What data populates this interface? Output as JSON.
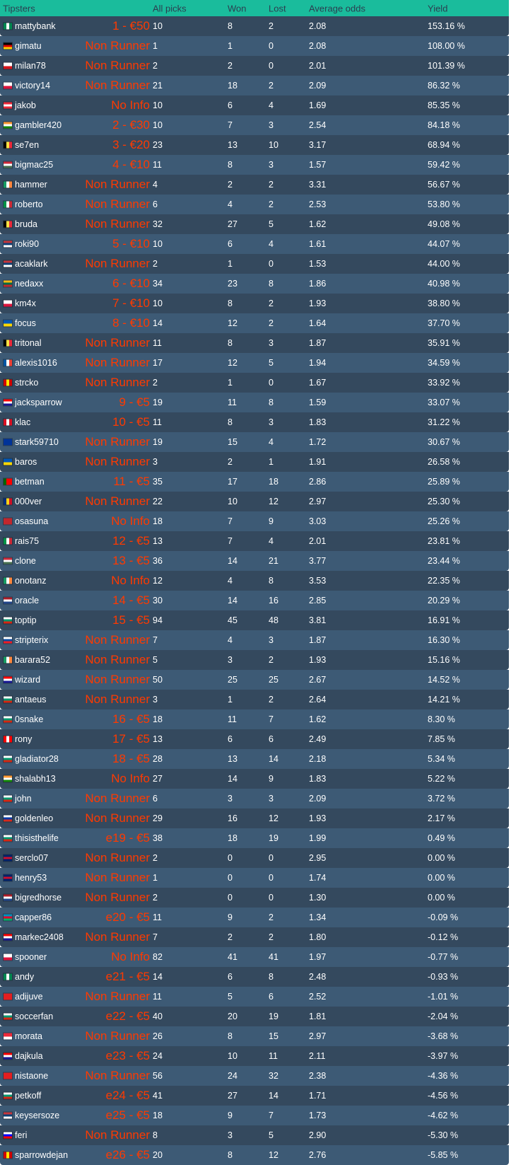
{
  "header": {
    "tipsters": "Tipsters",
    "all_picks": "All picks",
    "won": "Won",
    "lost": "Lost",
    "average_odds": "Average odds",
    "yield": "Yield"
  },
  "colors": {
    "header_bg": "#1abc9c",
    "row_dark": "#34495e",
    "row_light": "#3d5a75",
    "label": "#ff3a00"
  },
  "rows": [
    {
      "name": "mattybank",
      "label": "1 - €50",
      "picks": "10",
      "won": "8",
      "lost": "2",
      "odds": "2.08",
      "yield": "153.16 %",
      "flag": {
        "dir": "v",
        "colors": [
          "#008751",
          "#ffffff",
          "#008751"
        ]
      }
    },
    {
      "name": "gimatu",
      "label": "Non Runner",
      "picks": "1",
      "won": "1",
      "lost": "0",
      "odds": "2.08",
      "yield": "108.00 %",
      "flag": {
        "dir": "h",
        "colors": [
          "#000000",
          "#dd0000",
          "#ffce00"
        ]
      }
    },
    {
      "name": "milan78",
      "label": "Non Runner",
      "picks": "2",
      "won": "2",
      "lost": "0",
      "odds": "2.01",
      "yield": "101.39 %",
      "flag": {
        "dir": "h",
        "colors": [
          "#ffffff",
          "#d7141a"
        ]
      }
    },
    {
      "name": "victory14",
      "label": "Non Runner",
      "picks": "21",
      "won": "18",
      "lost": "2",
      "odds": "2.09",
      "yield": "86.32 %",
      "flag": {
        "dir": "h",
        "colors": [
          "#ffffff",
          "#dc143c"
        ]
      }
    },
    {
      "name": "jakob",
      "label": "No Info",
      "picks": "10",
      "won": "6",
      "lost": "4",
      "odds": "1.69",
      "yield": "85.35 %",
      "flag": {
        "dir": "h",
        "colors": [
          "#ed2939",
          "#ffffff",
          "#ed2939"
        ]
      }
    },
    {
      "name": "gambler420",
      "label": "2 - €30",
      "picks": "10",
      "won": "7",
      "lost": "3",
      "odds": "2.54",
      "yield": "84.18 %",
      "flag": {
        "dir": "h",
        "colors": [
          "#ff9933",
          "#ffffff",
          "#138808"
        ]
      }
    },
    {
      "name": "se7en",
      "label": "3 - €20",
      "picks": "23",
      "won": "13",
      "lost": "10",
      "odds": "3.17",
      "yield": "68.94 %",
      "flag": {
        "dir": "v",
        "colors": [
          "#000000",
          "#fae042",
          "#ed2939"
        ]
      }
    },
    {
      "name": "bigmac25",
      "label": "4 - €10",
      "picks": "11",
      "won": "8",
      "lost": "3",
      "odds": "1.57",
      "yield": "59.42 %",
      "flag": {
        "dir": "h",
        "colors": [
          "#ce2939",
          "#ffffff",
          "#477050"
        ]
      }
    },
    {
      "name": "hammer",
      "label": "Non Runner",
      "picks": "4",
      "won": "2",
      "lost": "2",
      "odds": "3.31",
      "yield": "56.67 %",
      "flag": {
        "dir": "v",
        "colors": [
          "#169b62",
          "#ffffff",
          "#ff883e"
        ]
      }
    },
    {
      "name": "roberto",
      "label": "Non Runner",
      "picks": "6",
      "won": "4",
      "lost": "2",
      "odds": "2.53",
      "yield": "53.80 %",
      "flag": {
        "dir": "v",
        "colors": [
          "#009246",
          "#ffffff",
          "#ce2b37"
        ]
      }
    },
    {
      "name": "bruda",
      "label": "Non Runner",
      "picks": "32",
      "won": "27",
      "lost": "5",
      "odds": "1.62",
      "yield": "49.08 %",
      "flag": {
        "dir": "v",
        "colors": [
          "#000000",
          "#fae042",
          "#ed2939"
        ]
      }
    },
    {
      "name": "roki90",
      "label": "5 - €10",
      "picks": "10",
      "won": "6",
      "lost": "4",
      "odds": "1.61",
      "yield": "44.07 %",
      "flag": {
        "dir": "h",
        "colors": [
          "#c6363c",
          "#0c4076",
          "#ffffff"
        ]
      }
    },
    {
      "name": "acaklark",
      "label": "Non Runner",
      "picks": "2",
      "won": "1",
      "lost": "0",
      "odds": "1.53",
      "yield": "44.00 %",
      "flag": {
        "dir": "h",
        "colors": [
          "#c6363c",
          "#0c4076",
          "#ffffff"
        ]
      }
    },
    {
      "name": "nedaxx",
      "label": "6 - €10",
      "picks": "34",
      "won": "23",
      "lost": "8",
      "odds": "1.86",
      "yield": "40.98 %",
      "flag": {
        "dir": "h",
        "colors": [
          "#fdb913",
          "#006a44",
          "#c1272d"
        ]
      }
    },
    {
      "name": "km4x",
      "label": "7 - €10",
      "picks": "10",
      "won": "8",
      "lost": "2",
      "odds": "1.93",
      "yield": "38.80 %",
      "flag": {
        "dir": "h",
        "colors": [
          "#ffffff",
          "#dc143c"
        ]
      }
    },
    {
      "name": "focus",
      "label": "8 - €10",
      "picks": "14",
      "won": "12",
      "lost": "2",
      "odds": "1.64",
      "yield": "37.70 %",
      "flag": {
        "dir": "h",
        "colors": [
          "#0057b7",
          "#ffd700"
        ]
      }
    },
    {
      "name": "tritonal",
      "label": "Non Runner",
      "picks": "11",
      "won": "8",
      "lost": "3",
      "odds": "1.87",
      "yield": "35.91 %",
      "flag": {
        "dir": "v",
        "colors": [
          "#000000",
          "#fae042",
          "#ed2939"
        ]
      }
    },
    {
      "name": "alexis1016",
      "label": "Non Runner",
      "picks": "17",
      "won": "12",
      "lost": "5",
      "odds": "1.94",
      "yield": "34.59 %",
      "flag": {
        "dir": "v",
        "colors": [
          "#0055a4",
          "#ffffff",
          "#ef4135"
        ]
      }
    },
    {
      "name": "strcko",
      "label": "Non Runner",
      "picks": "2",
      "won": "1",
      "lost": "0",
      "odds": "1.67",
      "yield": "33.92 %",
      "flag": {
        "dir": "v",
        "colors": [
          "#d20000",
          "#ffe600",
          "#d20000"
        ]
      }
    },
    {
      "name": "jacksparrow",
      "label": "9 - €5",
      "picks": "19",
      "won": "11",
      "lost": "8",
      "odds": "1.59",
      "yield": "33.07 %",
      "flag": {
        "dir": "h",
        "colors": [
          "#ff0000",
          "#ffffff",
          "#171796"
        ]
      }
    },
    {
      "name": "klac",
      "label": "10 - €5",
      "picks": "11",
      "won": "8",
      "lost": "3",
      "odds": "1.83",
      "yield": "31.22 %",
      "flag": {
        "dir": "v",
        "colors": [
          "#d91023",
          "#ffffff",
          "#d91023"
        ]
      }
    },
    {
      "name": "stark59710",
      "label": "Non Runner",
      "picks": "19",
      "won": "15",
      "lost": "4",
      "odds": "1.72",
      "yield": "30.67 %",
      "flag": {
        "dir": "h",
        "colors": [
          "#003399"
        ]
      }
    },
    {
      "name": "baros",
      "label": "Non Runner",
      "picks": "3",
      "won": "2",
      "lost": "1",
      "odds": "1.91",
      "yield": "26.58 %",
      "flag": {
        "dir": "h",
        "colors": [
          "#0057b7",
          "#ffd700"
        ]
      }
    },
    {
      "name": "betman",
      "label": "11 - €5",
      "picks": "35",
      "won": "17",
      "lost": "18",
      "odds": "2.86",
      "yield": "25.89 %",
      "flag": {
        "dir": "v",
        "colors": [
          "#006600",
          "#ff0000",
          "#ff0000"
        ]
      }
    },
    {
      "name": "000ver",
      "label": "Non Runner",
      "picks": "22",
      "won": "10",
      "lost": "12",
      "odds": "2.97",
      "yield": "25.30 %",
      "flag": {
        "dir": "v",
        "colors": [
          "#002b7f",
          "#fcd116",
          "#ce1126"
        ]
      }
    },
    {
      "name": "osasuna",
      "label": "No Info",
      "picks": "18",
      "won": "7",
      "lost": "9",
      "odds": "3.03",
      "yield": "25.26 %",
      "flag": {
        "dir": "h",
        "colors": [
          "#c1272d"
        ]
      }
    },
    {
      "name": "rais75",
      "label": "12 - €5",
      "picks": "13",
      "won": "7",
      "lost": "4",
      "odds": "2.01",
      "yield": "23.81 %",
      "flag": {
        "dir": "v",
        "colors": [
          "#009246",
          "#ffffff",
          "#ce2b37"
        ]
      }
    },
    {
      "name": "clone",
      "label": "13 - €5",
      "picks": "36",
      "won": "14",
      "lost": "21",
      "odds": "3.77",
      "yield": "23.44 %",
      "flag": {
        "dir": "h",
        "colors": [
          "#ce2939",
          "#ffffff",
          "#477050"
        ]
      }
    },
    {
      "name": "onotanz",
      "label": "No Info",
      "picks": "12",
      "won": "4",
      "lost": "8",
      "odds": "3.53",
      "yield": "22.35 %",
      "flag": {
        "dir": "v",
        "colors": [
          "#169b62",
          "#ffffff",
          "#ff883e"
        ]
      }
    },
    {
      "name": "oracle",
      "label": "14 - €5",
      "picks": "30",
      "won": "14",
      "lost": "16",
      "odds": "2.85",
      "yield": "20.29 %",
      "flag": {
        "dir": "h",
        "colors": [
          "#ae1c28",
          "#ffffff",
          "#21468b"
        ]
      }
    },
    {
      "name": "toptip",
      "label": "15 - €5",
      "picks": "94",
      "won": "45",
      "lost": "48",
      "odds": "3.81",
      "yield": "16.91 %",
      "flag": {
        "dir": "h",
        "colors": [
          "#ffffff",
          "#00966e",
          "#d62612"
        ]
      }
    },
    {
      "name": "stripterix",
      "label": "Non Runner",
      "picks": "7",
      "won": "4",
      "lost": "3",
      "odds": "1.87",
      "yield": "16.30 %",
      "flag": {
        "dir": "h",
        "colors": [
          "#ffffff",
          "#0b4ea2",
          "#ee1c25"
        ]
      }
    },
    {
      "name": "barara52",
      "label": "Non Runner",
      "picks": "5",
      "won": "3",
      "lost": "2",
      "odds": "1.93",
      "yield": "15.16 %",
      "flag": {
        "dir": "v",
        "colors": [
          "#169b62",
          "#ffffff",
          "#ff883e"
        ]
      }
    },
    {
      "name": "wizard",
      "label": "Non Runner",
      "picks": "50",
      "won": "25",
      "lost": "25",
      "odds": "2.67",
      "yield": "14.52 %",
      "flag": {
        "dir": "h",
        "colors": [
          "#ff0000",
          "#ffffff",
          "#171796"
        ]
      }
    },
    {
      "name": "antaeus",
      "label": "Non Runner",
      "picks": "3",
      "won": "1",
      "lost": "2",
      "odds": "2.64",
      "yield": "14.21 %",
      "flag": {
        "dir": "h",
        "colors": [
          "#ffffff",
          "#00966e",
          "#d62612"
        ]
      }
    },
    {
      "name": "0snake",
      "label": "16 - €5",
      "picks": "18",
      "won": "11",
      "lost": "7",
      "odds": "1.62",
      "yield": "8.30 %",
      "flag": {
        "dir": "h",
        "colors": [
          "#ffffff",
          "#00966e",
          "#d62612"
        ]
      }
    },
    {
      "name": "rony",
      "label": "17 - €5",
      "picks": "13",
      "won": "6",
      "lost": "6",
      "odds": "2.49",
      "yield": "7.85 %",
      "flag": {
        "dir": "v",
        "colors": [
          "#ff0000",
          "#ffffff",
          "#ff0000"
        ]
      }
    },
    {
      "name": "gladiator28",
      "label": "18 - €5",
      "picks": "28",
      "won": "13",
      "lost": "14",
      "odds": "2.18",
      "yield": "5.34 %",
      "flag": {
        "dir": "h",
        "colors": [
          "#ffffff",
          "#00966e",
          "#d62612"
        ]
      }
    },
    {
      "name": "shalabh13",
      "label": "No Info",
      "picks": "27",
      "won": "14",
      "lost": "9",
      "odds": "1.83",
      "yield": "5.22 %",
      "flag": {
        "dir": "h",
        "colors": [
          "#ff9933",
          "#ffffff",
          "#138808"
        ]
      }
    },
    {
      "name": "john",
      "label": "Non Runner",
      "picks": "6",
      "won": "3",
      "lost": "3",
      "odds": "2.09",
      "yield": "3.72 %",
      "flag": {
        "dir": "h",
        "colors": [
          "#ffffff",
          "#00966e",
          "#d62612"
        ]
      }
    },
    {
      "name": "goldenleo",
      "label": "Non Runner",
      "picks": "29",
      "won": "16",
      "lost": "12",
      "odds": "1.93",
      "yield": "2.17 %",
      "flag": {
        "dir": "h",
        "colors": [
          "#ffffff",
          "#0039a6",
          "#d52b1e"
        ]
      }
    },
    {
      "name": "thisisthelife",
      "label": "e19 - €5",
      "picks": "38",
      "won": "18",
      "lost": "19",
      "odds": "1.99",
      "yield": "0.49 %",
      "flag": {
        "dir": "h",
        "colors": [
          "#ffffff",
          "#00966e",
          "#d62612"
        ]
      }
    },
    {
      "name": "serclo07",
      "label": "Non Runner",
      "picks": "2",
      "won": "0",
      "lost": "0",
      "odds": "2.95",
      "yield": "0.00 %",
      "flag": {
        "dir": "h",
        "colors": [
          "#012169",
          "#c8102e",
          "#012169"
        ]
      }
    },
    {
      "name": "henry53",
      "label": "Non Runner",
      "picks": "1",
      "won": "0",
      "lost": "0",
      "odds": "1.74",
      "yield": "0.00 %",
      "flag": {
        "dir": "h",
        "colors": [
          "#012169",
          "#c8102e",
          "#012169"
        ]
      }
    },
    {
      "name": "bigredhorse",
      "label": "Non Runner",
      "picks": "2",
      "won": "0",
      "lost": "0",
      "odds": "1.30",
      "yield": "0.00 %",
      "flag": {
        "dir": "h",
        "colors": [
          "#ae1c28",
          "#ffffff",
          "#21468b"
        ]
      }
    },
    {
      "name": "capper86",
      "label": "e20 - €5",
      "picks": "11",
      "won": "9",
      "lost": "2",
      "odds": "1.34",
      "yield": "-0.09 %",
      "flag": {
        "dir": "h",
        "colors": [
          "#0092bc",
          "#e4002b",
          "#00af66"
        ]
      }
    },
    {
      "name": "markec2408",
      "label": "Non Runner",
      "picks": "7",
      "won": "2",
      "lost": "2",
      "odds": "1.80",
      "yield": "-0.12 %",
      "flag": {
        "dir": "h",
        "colors": [
          "#ff0000",
          "#ffffff",
          "#171796"
        ]
      }
    },
    {
      "name": "spooner",
      "label": "No Info",
      "picks": "82",
      "won": "41",
      "lost": "41",
      "odds": "1.97",
      "yield": "-0.77 %",
      "flag": {
        "dir": "h",
        "colors": [
          "#ffffff",
          "#dc143c"
        ]
      }
    },
    {
      "name": "andy",
      "label": "e21 - €5",
      "picks": "14",
      "won": "6",
      "lost": "8",
      "odds": "2.48",
      "yield": "-0.93 %",
      "flag": {
        "dir": "v",
        "colors": [
          "#008751",
          "#ffffff",
          "#008751"
        ]
      }
    },
    {
      "name": "adijuve",
      "label": "Non Runner",
      "picks": "11",
      "won": "5",
      "lost": "6",
      "odds": "2.52",
      "yield": "-1.01 %",
      "flag": {
        "dir": "h",
        "colors": [
          "#e41e20"
        ]
      }
    },
    {
      "name": "soccerfan",
      "label": "e22 - €5",
      "picks": "40",
      "won": "20",
      "lost": "19",
      "odds": "1.81",
      "yield": "-2.04 %",
      "flag": {
        "dir": "h",
        "colors": [
          "#ffffff",
          "#00966e",
          "#d62612"
        ]
      }
    },
    {
      "name": "morata",
      "label": "Non Runner",
      "picks": "26",
      "won": "8",
      "lost": "15",
      "odds": "2.97",
      "yield": "-3.68 %",
      "flag": {
        "dir": "h",
        "colors": [
          "#ed2939",
          "#ffffff"
        ]
      }
    },
    {
      "name": "dajkula",
      "label": "e23 - €5",
      "picks": "24",
      "won": "10",
      "lost": "11",
      "odds": "2.11",
      "yield": "-3.97 %",
      "flag": {
        "dir": "h",
        "colors": [
          "#ff0000",
          "#ffffff",
          "#171796"
        ]
      }
    },
    {
      "name": "nistaone",
      "label": "Non Runner",
      "picks": "56",
      "won": "24",
      "lost": "32",
      "odds": "2.38",
      "yield": "-4.36 %",
      "flag": {
        "dir": "h",
        "colors": [
          "#e41e20"
        ]
      }
    },
    {
      "name": "petkoff",
      "label": "e24 - €5",
      "picks": "41",
      "won": "27",
      "lost": "14",
      "odds": "1.71",
      "yield": "-4.56 %",
      "flag": {
        "dir": "h",
        "colors": [
          "#ffffff",
          "#00966e",
          "#d62612"
        ]
      }
    },
    {
      "name": "keysersoze",
      "label": "e25 - €5",
      "picks": "18",
      "won": "9",
      "lost": "7",
      "odds": "1.73",
      "yield": "-4.62 %",
      "flag": {
        "dir": "h",
        "colors": [
          "#c6363c",
          "#0c4076",
          "#ffffff"
        ]
      }
    },
    {
      "name": "feri",
      "label": "Non Runner",
      "picks": "8",
      "won": "3",
      "lost": "5",
      "odds": "2.90",
      "yield": "-5.30 %",
      "flag": {
        "dir": "h",
        "colors": [
          "#ffffff",
          "#0000ff",
          "#ff0000"
        ]
      }
    },
    {
      "name": "sparrowdejan",
      "label": "e26 - €5",
      "picks": "20",
      "won": "8",
      "lost": "12",
      "odds": "2.76",
      "yield": "-5.85 %",
      "flag": {
        "dir": "v",
        "colors": [
          "#d20000",
          "#ffe600",
          "#d20000"
        ]
      }
    }
  ]
}
